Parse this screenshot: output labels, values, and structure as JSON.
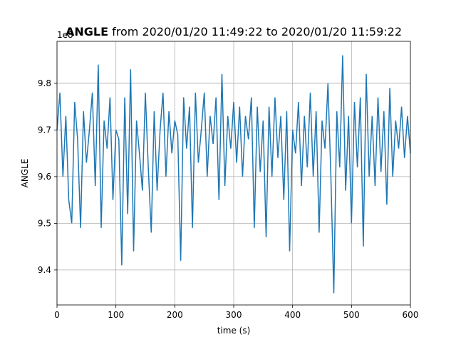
{
  "chart_data": {
    "type": "line",
    "title_bold": "ANGLE",
    "title_rest": " from 2020/01/20 11:49:22 to 2020/01/20 11:59:22",
    "xlabel": "time (s)",
    "ylabel": "ANGLE",
    "offset_label": "1e8",
    "xlim": [
      0,
      600
    ],
    "ylim": [
      9.325,
      9.89
    ],
    "xticks": [
      0,
      100,
      200,
      300,
      400,
      500,
      600
    ],
    "xtick_labels": [
      "0",
      "100",
      "200",
      "300",
      "400",
      "500",
      "600"
    ],
    "yticks": [
      9.4,
      9.5,
      9.6,
      9.7,
      9.8
    ],
    "ytick_labels": [
      "9.4",
      "9.5",
      "9.6",
      "9.7",
      "9.8"
    ],
    "grid": true,
    "color": "#1f77b4",
    "series": [
      {
        "x": [
          0,
          5,
          10,
          15,
          20,
          25,
          30,
          35,
          40,
          45,
          50,
          55,
          60,
          65,
          70,
          75,
          80,
          85,
          90,
          95,
          100,
          105,
          110,
          115,
          120,
          125,
          130,
          135,
          140,
          145,
          150,
          155,
          160,
          165,
          170,
          175,
          180,
          185,
          190,
          195,
          200,
          205,
          210,
          215,
          220,
          225,
          230,
          235,
          240,
          245,
          250,
          255,
          260,
          265,
          270,
          275,
          280,
          285,
          290,
          295,
          300,
          305,
          310,
          315,
          320,
          325,
          330,
          335,
          340,
          345,
          350,
          355,
          360,
          365,
          370,
          375,
          380,
          385,
          390,
          395,
          400,
          405,
          410,
          415,
          420,
          425,
          430,
          435,
          440,
          445,
          450,
          455,
          460,
          465,
          470,
          475,
          480,
          485,
          490,
          495,
          500,
          505,
          510,
          515,
          520,
          525,
          530,
          535,
          540,
          545,
          550,
          555,
          560,
          565,
          570,
          575,
          580,
          585,
          590,
          595,
          600
        ],
        "values": [
          9.7,
          9.78,
          9.6,
          9.73,
          9.55,
          9.5,
          9.76,
          9.68,
          9.49,
          9.74,
          9.63,
          9.7,
          9.78,
          9.58,
          9.84,
          9.49,
          9.72,
          9.66,
          9.77,
          9.55,
          9.7,
          9.68,
          9.41,
          9.77,
          9.52,
          9.83,
          9.44,
          9.72,
          9.65,
          9.57,
          9.78,
          9.62,
          9.48,
          9.74,
          9.57,
          9.7,
          9.78,
          9.6,
          9.74,
          9.65,
          9.72,
          9.69,
          9.42,
          9.77,
          9.66,
          9.75,
          9.49,
          9.78,
          9.63,
          9.7,
          9.78,
          9.6,
          9.73,
          9.67,
          9.77,
          9.55,
          9.82,
          9.58,
          9.73,
          9.66,
          9.76,
          9.63,
          9.75,
          9.6,
          9.73,
          9.68,
          9.77,
          9.49,
          9.75,
          9.61,
          9.72,
          9.47,
          9.75,
          9.6,
          9.77,
          9.64,
          9.73,
          9.55,
          9.74,
          9.44,
          9.7,
          9.65,
          9.76,
          9.58,
          9.73,
          9.62,
          9.78,
          9.6,
          9.74,
          9.48,
          9.72,
          9.66,
          9.8,
          9.6,
          9.35,
          9.74,
          9.62,
          9.86,
          9.57,
          9.73,
          9.5,
          9.76,
          9.62,
          9.77,
          9.45,
          9.82,
          9.6,
          9.73,
          9.58,
          9.77,
          9.61,
          9.74,
          9.54,
          9.79,
          9.6,
          9.72,
          9.66,
          9.75,
          9.64,
          9.73,
          9.65
        ]
      }
    ]
  }
}
